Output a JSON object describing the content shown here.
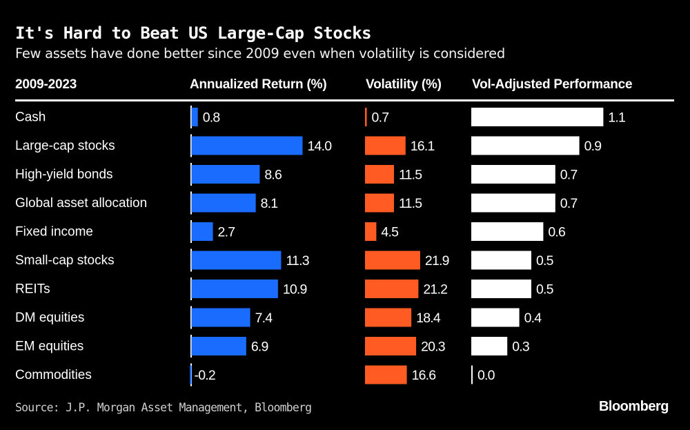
{
  "chart_data": {
    "type": "bar",
    "title": "It's Hard to Beat US Large-Cap Stocks",
    "subtitle": "Few assets have done better since 2009 even when volatility is considered",
    "period_label": "2009-2023",
    "categories": [
      "Cash",
      "Large-cap stocks",
      "High-yield bonds",
      "Global asset allocation",
      "Fixed income",
      "Small-cap stocks",
      "REITs",
      "DM equities",
      "EM equities",
      "Commodities"
    ],
    "series": [
      {
        "name": "Annualized Return (%)",
        "color": "#1a6cff",
        "values": [
          0.8,
          14.0,
          8.6,
          8.1,
          2.7,
          11.3,
          10.9,
          7.4,
          6.9,
          -0.2
        ],
        "labels": [
          "0.8",
          "14.0",
          "8.6",
          "8.1",
          "2.7",
          "11.3",
          "10.9",
          "7.4",
          "6.9",
          "-0.2"
        ]
      },
      {
        "name": "Volatility (%)",
        "color": "#ff5b23",
        "values": [
          0.7,
          16.1,
          11.5,
          11.5,
          4.5,
          21.9,
          21.2,
          18.4,
          20.3,
          16.6
        ],
        "labels": [
          "0.7",
          "16.1",
          "11.5",
          "11.5",
          "4.5",
          "21.9",
          "21.2",
          "18.4",
          "20.3",
          "16.6"
        ]
      },
      {
        "name": "Vol-Adjusted Performance",
        "color": "#ffffff",
        "values": [
          1.1,
          0.9,
          0.7,
          0.7,
          0.6,
          0.5,
          0.5,
          0.4,
          0.3,
          0.0
        ],
        "labels": [
          "1.1",
          "0.9",
          "0.7",
          "0.7",
          "0.6",
          "0.5",
          "0.5",
          "0.4",
          "0.3",
          "0.0"
        ]
      }
    ],
    "source": "Source: J.P. Morgan Asset Management, Bloomberg",
    "brand": "Bloomberg",
    "grid": false,
    "legend": "none"
  }
}
